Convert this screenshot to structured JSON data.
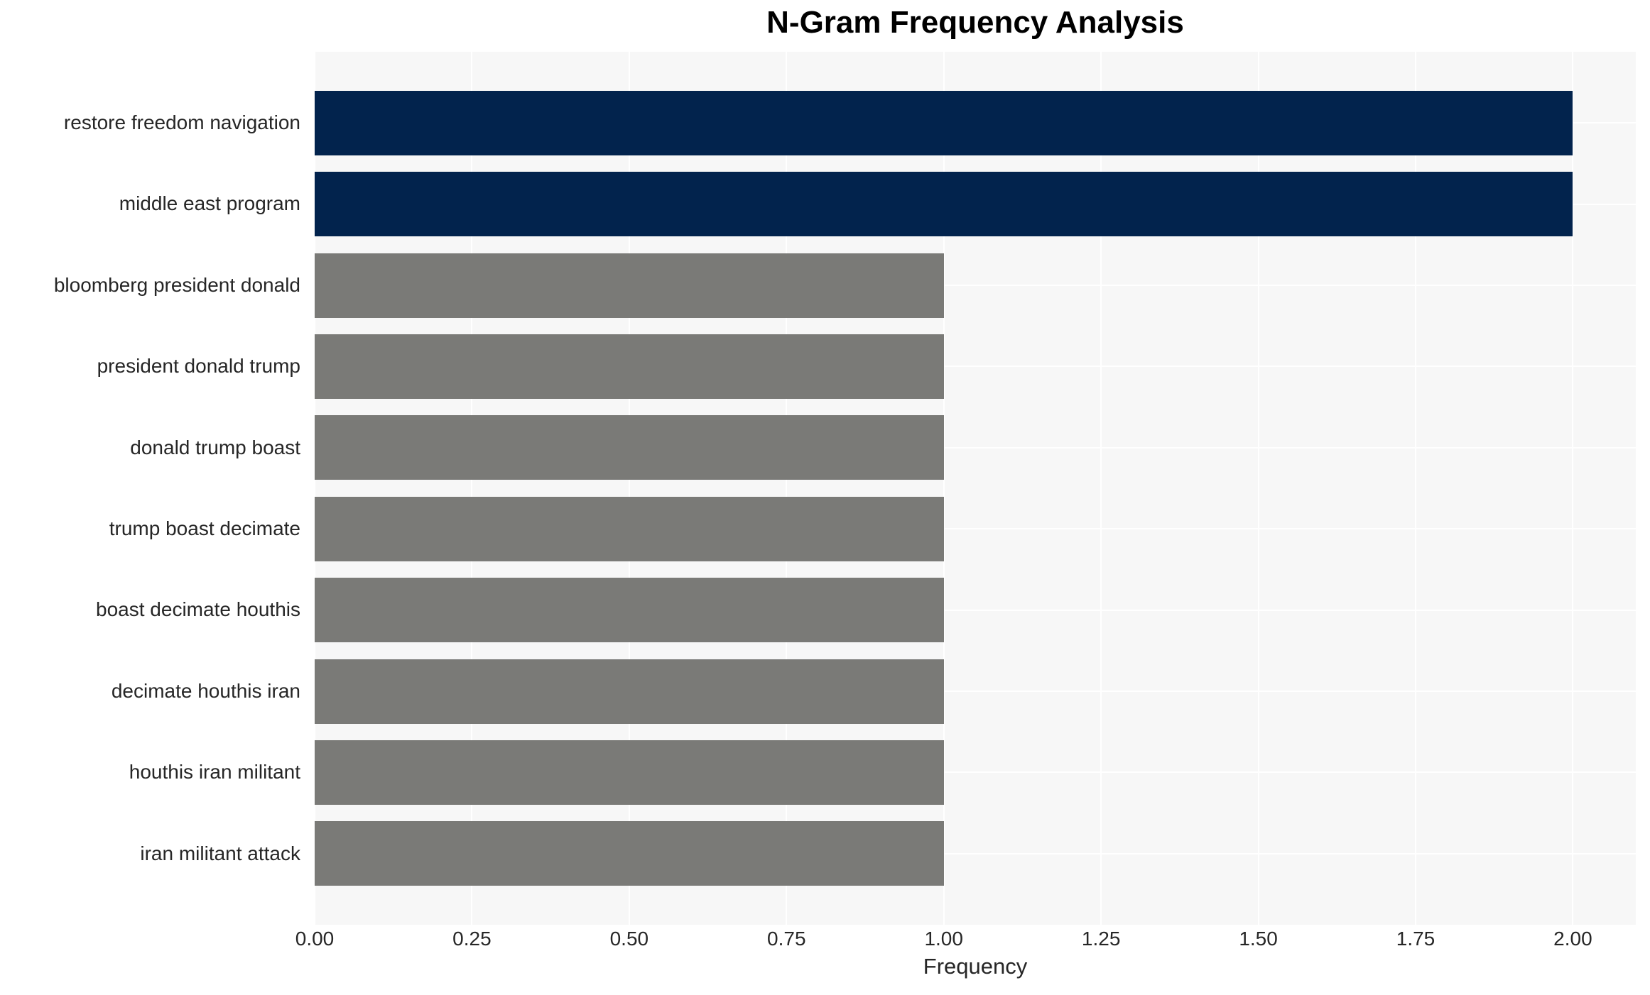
{
  "chart_data": {
    "type": "bar",
    "orientation": "horizontal",
    "title": "N-Gram Frequency Analysis",
    "xlabel": "Frequency",
    "categories": [
      "restore freedom navigation",
      "middle east program",
      "bloomberg president donald",
      "president donald trump",
      "donald trump boast",
      "trump boast decimate",
      "boast decimate houthis",
      "decimate houthis iran",
      "houthis iran militant",
      "iran militant attack"
    ],
    "values": [
      2,
      2,
      1,
      1,
      1,
      1,
      1,
      1,
      1,
      1
    ],
    "bar_colors": [
      "#02234d",
      "#02234d",
      "#7a7a77",
      "#7a7a77",
      "#7a7a77",
      "#7a7a77",
      "#7a7a77",
      "#7a7a77",
      "#7a7a77",
      "#7a7a77"
    ],
    "xlim": [
      0,
      2.1
    ],
    "xtick_values": [
      0,
      0.25,
      0.5,
      0.75,
      1.0,
      1.25,
      1.5,
      1.75,
      2.0
    ],
    "xtick_labels": [
      "0.00",
      "0.25",
      "0.50",
      "0.75",
      "1.00",
      "1.25",
      "1.50",
      "1.75",
      "2.00"
    ],
    "grid": "on",
    "legend": "none",
    "colors": {
      "highlight_bar": "#02234d",
      "default_bar": "#7a7a77",
      "plot_background": "#f7f7f7",
      "gridline": "#ffffff",
      "text": "#262626",
      "title_text": "#000000"
    }
  }
}
